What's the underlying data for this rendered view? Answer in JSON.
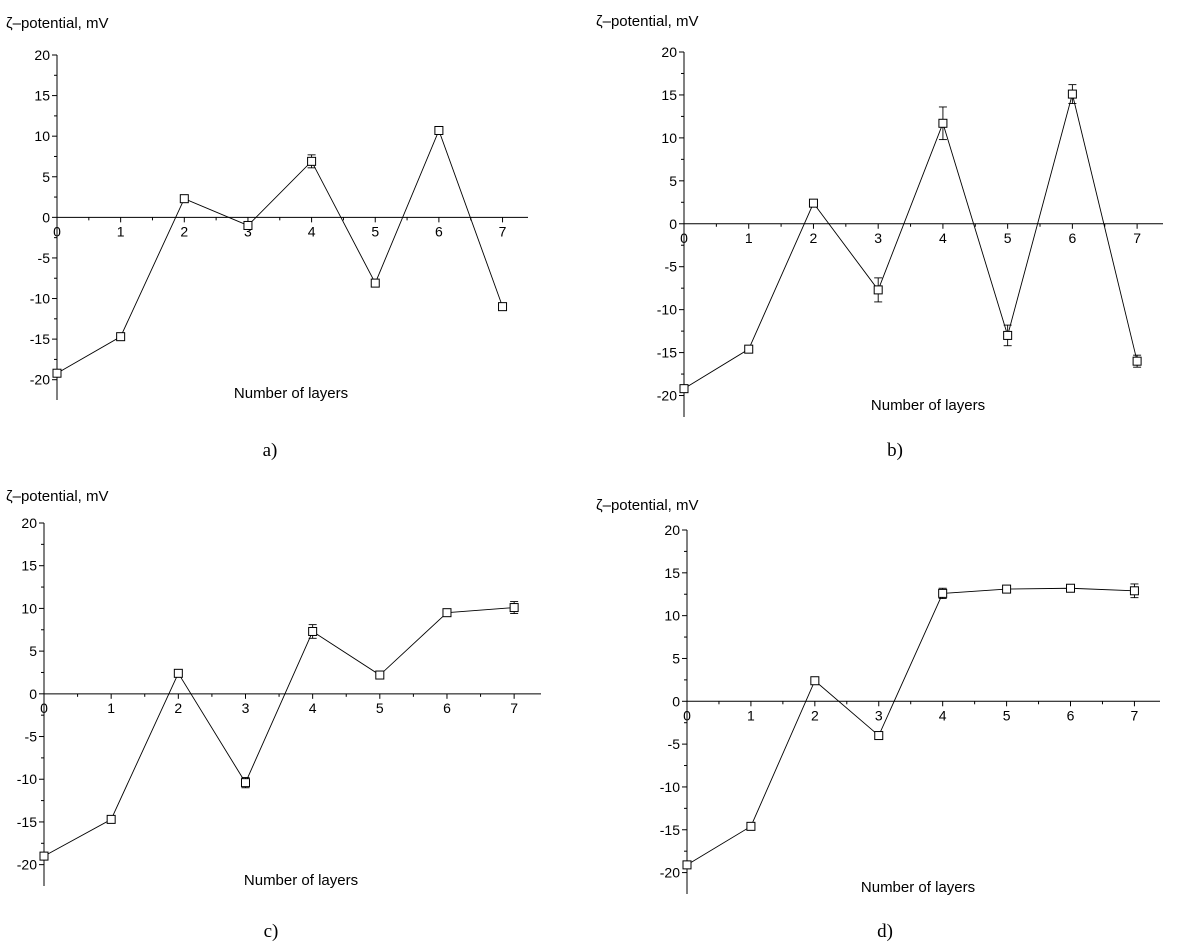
{
  "chart_data": [
    {
      "type": "line",
      "caption": "a)",
      "ylabel": "ζ–potential, mV",
      "xlabel": "Number of layers",
      "xlim": [
        0,
        7.4
      ],
      "ylim": [
        -22.5,
        20
      ],
      "xticks": [
        0,
        1,
        2,
        3,
        4,
        5,
        6,
        7
      ],
      "yticks": [
        -20,
        -15,
        -10,
        -5,
        0,
        5,
        10,
        15,
        20
      ],
      "x": [
        0,
        1,
        2,
        3,
        4,
        5,
        6,
        7
      ],
      "y": [
        -19.2,
        -14.7,
        2.3,
        -1.0,
        6.9,
        -8.1,
        10.7,
        -11.0
      ],
      "err": [
        0.3,
        0.3,
        0.3,
        0.4,
        0.8,
        0.3,
        0.3,
        0.3
      ]
    },
    {
      "type": "line",
      "caption": "b)",
      "ylabel": "ζ–potential, mV",
      "xlabel": "Number of layers",
      "xlim": [
        0,
        7.4
      ],
      "ylim": [
        -22.5,
        20
      ],
      "xticks": [
        0,
        1,
        2,
        3,
        4,
        5,
        6,
        7
      ],
      "yticks": [
        -20,
        -15,
        -10,
        -5,
        0,
        5,
        10,
        15,
        20
      ],
      "x": [
        0,
        1,
        2,
        3,
        4,
        5,
        6,
        7
      ],
      "y": [
        -19.2,
        -14.6,
        2.4,
        -7.7,
        11.7,
        -13.0,
        15.1,
        -16.0
      ],
      "err": [
        0.3,
        0.3,
        0.3,
        1.4,
        1.9,
        1.2,
        1.1,
        0.7
      ]
    },
    {
      "type": "line",
      "caption": "c)",
      "ylabel": "ζ–potential, mV",
      "xlabel": "Number of layers",
      "xlim": [
        0,
        7.4
      ],
      "ylim": [
        -22.5,
        20
      ],
      "xticks": [
        0,
        1,
        2,
        3,
        4,
        5,
        6,
        7
      ],
      "yticks": [
        -20,
        -15,
        -10,
        -5,
        0,
        5,
        10,
        15,
        20
      ],
      "x": [
        0,
        1,
        2,
        3,
        4,
        5,
        6,
        7
      ],
      "y": [
        -19.0,
        -14.7,
        2.4,
        -10.4,
        7.3,
        2.2,
        9.5,
        10.1
      ],
      "err": [
        0.3,
        0.3,
        0.3,
        0.6,
        0.8,
        0.3,
        0.3,
        0.7
      ]
    },
    {
      "type": "line",
      "caption": "d)",
      "ylabel": "ζ–potential, mV",
      "xlabel": "Number of layers",
      "xlim": [
        0,
        7.4
      ],
      "ylim": [
        -22.5,
        20
      ],
      "xticks": [
        0,
        1,
        2,
        3,
        4,
        5,
        6,
        7
      ],
      "yticks": [
        -20,
        -15,
        -10,
        -5,
        0,
        5,
        10,
        15,
        20
      ],
      "x": [
        0,
        1,
        2,
        3,
        4,
        5,
        6,
        7
      ],
      "y": [
        -19.1,
        -14.6,
        2.4,
        -4.0,
        12.6,
        13.1,
        13.2,
        12.9
      ],
      "err": [
        0.3,
        0.3,
        0.3,
        0.4,
        0.6,
        0.3,
        0.3,
        0.8
      ]
    }
  ]
}
